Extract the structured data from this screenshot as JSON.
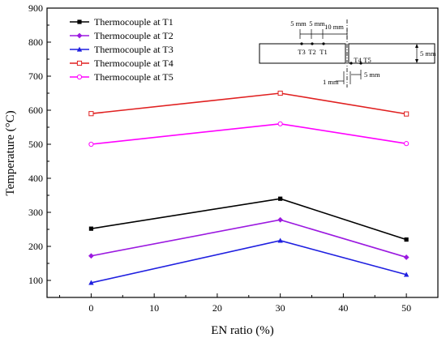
{
  "chart_data": {
    "type": "line",
    "title": "",
    "xlabel": "EN ratio (%)",
    "ylabel": "Temperature (°C)",
    "xlim": [
      -7,
      55
    ],
    "ylim": [
      50,
      900
    ],
    "xticks": [
      0,
      10,
      20,
      30,
      40,
      50
    ],
    "yticks": [
      100,
      200,
      300,
      400,
      500,
      600,
      700,
      800,
      900
    ],
    "x": [
      0,
      30,
      50
    ],
    "legend_position": "top-left",
    "grid": false,
    "series": [
      {
        "name": "Thermocouple at T1",
        "color": "#000000",
        "marker": "square-filled",
        "values": [
          252,
          340,
          220
        ]
      },
      {
        "name": "Thermocouple at T2",
        "color": "#9b19e0",
        "marker": "diamond-filled",
        "values": [
          172,
          278,
          168
        ]
      },
      {
        "name": "Thermocouple at T3",
        "color": "#1f1fe0",
        "marker": "triangle-filled",
        "values": [
          93,
          217,
          117
        ]
      },
      {
        "name": "Thermocouple at T4",
        "color": "#e02020",
        "marker": "square-open",
        "values": [
          590,
          650,
          589
        ]
      },
      {
        "name": "Thermocouple at T5",
        "color": "#ff00ff",
        "marker": "circle-open",
        "values": [
          500,
          560,
          502
        ]
      }
    ],
    "inset": {
      "spacing_labels": [
        "5 mm",
        "5 mm",
        "10 mm"
      ],
      "left_points": [
        "T3",
        "T2",
        "T1"
      ],
      "right_points": [
        "T4",
        "T5"
      ],
      "thickness_label": "5 mm",
      "gap_label": "1 mm",
      "right_spacing_label": "5 mm"
    }
  }
}
